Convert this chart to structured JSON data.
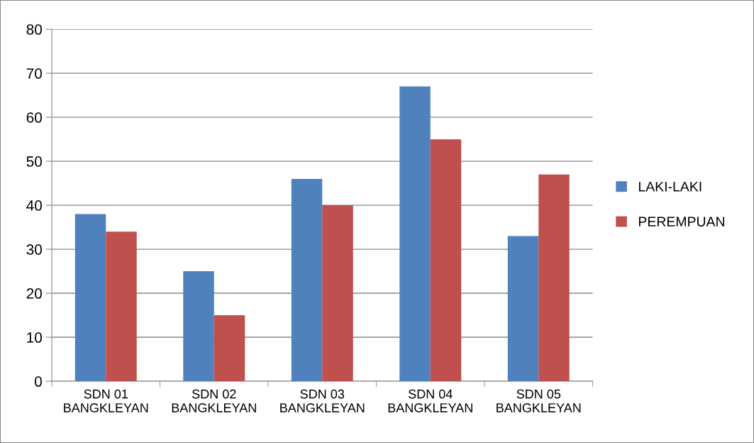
{
  "chart_data": {
    "type": "bar",
    "categories": [
      "SDN 01\nBANGKLEYAN",
      "SDN 02\nBANGKLEYAN",
      "SDN 03\nBANGKLEYAN",
      "SDN 04\nBANGKLEYAN",
      "SDN 05\nBANGKLEYAN"
    ],
    "series": [
      {
        "name": "LAKI-LAKI",
        "color": "#4f81bd",
        "values": [
          38,
          25,
          46,
          67,
          33
        ]
      },
      {
        "name": "PEREMPUAN",
        "color": "#c0504d",
        "values": [
          34,
          15,
          40,
          55,
          47
        ]
      }
    ],
    "ylim": [
      0,
      80
    ],
    "yticks": [
      0,
      10,
      20,
      30,
      40,
      50,
      60,
      70,
      80
    ],
    "grid": "y",
    "legend": "right"
  }
}
